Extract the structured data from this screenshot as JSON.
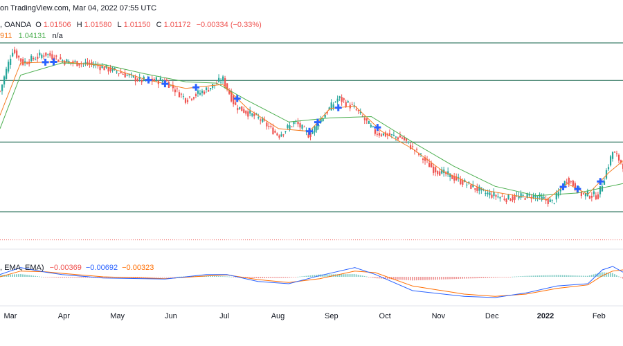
{
  "header": {
    "published": "on TradingView.com, Mar 04, 2022 07:55 UTC",
    "symbol": ", OANDA",
    "o_label": "O",
    "o_value": "1.01506",
    "h_label": "H",
    "h_value": "1.01580",
    "l_label": "L",
    "l_value": "1.01150",
    "c_label": "C",
    "c_value": "1.01172",
    "change": "−0.00334 (−0.33%)",
    "ma_fast_value": "911",
    "ma_slow_value": "1.04131",
    "ma_na": "n/a"
  },
  "macd_header": {
    "label": ", EMA, EMA)",
    "hist_value": "−0.00369",
    "macd_value": "−0.00692",
    "signal_value": "−0.00323"
  },
  "colors": {
    "up": "#26a69a",
    "down": "#ef5350",
    "ma_fast": "#f57c20",
    "ma_slow": "#4caf50",
    "macd": "#2962ff",
    "signal": "#ff6d00",
    "level_line": "#0b5e43",
    "marker": "#2962ff",
    "dotted": "#ef5350"
  },
  "chart_data": {
    "type": "candlestick",
    "title": "Daily candles with moving averages, horizontal levels and MACD",
    "x_tick_labels": [
      "Mar",
      "Apr",
      "May",
      "Jun",
      "Jul",
      "Aug",
      "Sep",
      "Oct",
      "Nov",
      "Dec",
      "2022",
      "Feb"
    ],
    "y_range": [
      0.995,
      1.255
    ],
    "horizontal_levels": [
      1.229,
      1.201,
      1.155,
      1.103
    ],
    "dotted_level": 1.082,
    "price_path": [
      {
        "t": 0,
        "v": 1.193
      },
      {
        "t": 6,
        "v": 1.224
      },
      {
        "t": 11,
        "v": 1.214
      },
      {
        "t": 22,
        "v": 1.221
      },
      {
        "t": 32,
        "v": 1.215
      },
      {
        "t": 45,
        "v": 1.213
      },
      {
        "t": 58,
        "v": 1.207
      },
      {
        "t": 68,
        "v": 1.201
      },
      {
        "t": 80,
        "v": 1.201
      },
      {
        "t": 90,
        "v": 1.187
      },
      {
        "t": 100,
        "v": 1.194
      },
      {
        "t": 108,
        "v": 1.202
      },
      {
        "t": 114,
        "v": 1.182
      },
      {
        "t": 126,
        "v": 1.172
      },
      {
        "t": 135,
        "v": 1.16
      },
      {
        "t": 143,
        "v": 1.17
      },
      {
        "t": 150,
        "v": 1.16
      },
      {
        "t": 158,
        "v": 1.177
      },
      {
        "t": 164,
        "v": 1.188
      },
      {
        "t": 172,
        "v": 1.18
      },
      {
        "t": 182,
        "v": 1.162
      },
      {
        "t": 195,
        "v": 1.158
      },
      {
        "t": 210,
        "v": 1.135
      },
      {
        "t": 222,
        "v": 1.127
      },
      {
        "t": 235,
        "v": 1.117
      },
      {
        "t": 245,
        "v": 1.113
      },
      {
        "t": 258,
        "v": 1.115
      },
      {
        "t": 268,
        "v": 1.11
      },
      {
        "t": 275,
        "v": 1.128
      },
      {
        "t": 282,
        "v": 1.116
      },
      {
        "t": 290,
        "v": 1.115
      },
      {
        "t": 297,
        "v": 1.148
      },
      {
        "t": 302,
        "v": 1.138
      }
    ],
    "ma_fast": [
      {
        "t": 0,
        "v": 1.175
      },
      {
        "t": 10,
        "v": 1.214
      },
      {
        "t": 30,
        "v": 1.215
      },
      {
        "t": 50,
        "v": 1.212
      },
      {
        "t": 70,
        "v": 1.202
      },
      {
        "t": 90,
        "v": 1.195
      },
      {
        "t": 108,
        "v": 1.198
      },
      {
        "t": 120,
        "v": 1.18
      },
      {
        "t": 135,
        "v": 1.165
      },
      {
        "t": 150,
        "v": 1.163
      },
      {
        "t": 160,
        "v": 1.18
      },
      {
        "t": 172,
        "v": 1.182
      },
      {
        "t": 185,
        "v": 1.163
      },
      {
        "t": 200,
        "v": 1.15
      },
      {
        "t": 215,
        "v": 1.133
      },
      {
        "t": 235,
        "v": 1.119
      },
      {
        "t": 250,
        "v": 1.115
      },
      {
        "t": 265,
        "v": 1.112
      },
      {
        "t": 275,
        "v": 1.124
      },
      {
        "t": 285,
        "v": 1.116
      },
      {
        "t": 295,
        "v": 1.132
      },
      {
        "t": 302,
        "v": 1.141
      }
    ],
    "ma_slow": [
      {
        "t": 0,
        "v": 1.165
      },
      {
        "t": 10,
        "v": 1.205
      },
      {
        "t": 30,
        "v": 1.214
      },
      {
        "t": 50,
        "v": 1.213
      },
      {
        "t": 70,
        "v": 1.206
      },
      {
        "t": 90,
        "v": 1.2
      },
      {
        "t": 105,
        "v": 1.199
      },
      {
        "t": 120,
        "v": 1.186
      },
      {
        "t": 140,
        "v": 1.17
      },
      {
        "t": 160,
        "v": 1.173
      },
      {
        "t": 180,
        "v": 1.174
      },
      {
        "t": 200,
        "v": 1.155
      },
      {
        "t": 220,
        "v": 1.137
      },
      {
        "t": 240,
        "v": 1.122
      },
      {
        "t": 260,
        "v": 1.115
      },
      {
        "t": 280,
        "v": 1.117
      },
      {
        "t": 302,
        "v": 1.124
      }
    ],
    "markers_t": [
      22,
      26,
      72,
      80,
      95,
      115,
      150,
      154,
      164,
      183,
      273,
      280,
      291
    ],
    "macd": {
      "y_range": [
        -0.012,
        0.006
      ],
      "macd_line": [
        {
          "t": 0,
          "v": 0.001
        },
        {
          "t": 10,
          "v": 0.004
        },
        {
          "t": 22,
          "v": 0.002
        },
        {
          "t": 30,
          "v": 0.001
        },
        {
          "t": 50,
          "v": -0.0005
        },
        {
          "t": 80,
          "v": -0.001
        },
        {
          "t": 100,
          "v": 0.001
        },
        {
          "t": 110,
          "v": 0.001
        },
        {
          "t": 125,
          "v": -0.002
        },
        {
          "t": 140,
          "v": -0.003
        },
        {
          "t": 155,
          "v": 0.0005
        },
        {
          "t": 172,
          "v": 0.004
        },
        {
          "t": 182,
          "v": 0.001
        },
        {
          "t": 200,
          "v": -0.006
        },
        {
          "t": 225,
          "v": -0.0085
        },
        {
          "t": 240,
          "v": -0.009
        },
        {
          "t": 255,
          "v": -0.007
        },
        {
          "t": 270,
          "v": -0.004
        },
        {
          "t": 285,
          "v": -0.003
        },
        {
          "t": 292,
          "v": 0.003
        },
        {
          "t": 297,
          "v": 0.0045
        },
        {
          "t": 302,
          "v": 0.002
        }
      ],
      "signal_line": [
        {
          "t": 0,
          "v": 0.0
        },
        {
          "t": 10,
          "v": 0.0025
        },
        {
          "t": 22,
          "v": 0.0022
        },
        {
          "t": 30,
          "v": 0.0015
        },
        {
          "t": 50,
          "v": 0.0
        },
        {
          "t": 80,
          "v": -0.0008
        },
        {
          "t": 100,
          "v": 0.0004
        },
        {
          "t": 110,
          "v": 0.0008
        },
        {
          "t": 125,
          "v": -0.0012
        },
        {
          "t": 140,
          "v": -0.0025
        },
        {
          "t": 155,
          "v": -0.0008
        },
        {
          "t": 172,
          "v": 0.0025
        },
        {
          "t": 182,
          "v": 0.0018
        },
        {
          "t": 200,
          "v": -0.004
        },
        {
          "t": 225,
          "v": -0.0075
        },
        {
          "t": 240,
          "v": -0.0085
        },
        {
          "t": 255,
          "v": -0.0075
        },
        {
          "t": 270,
          "v": -0.005
        },
        {
          "t": 285,
          "v": -0.0035
        },
        {
          "t": 292,
          "v": 0.0005
        },
        {
          "t": 297,
          "v": 0.0025
        },
        {
          "t": 302,
          "v": 0.003
        }
      ]
    }
  }
}
